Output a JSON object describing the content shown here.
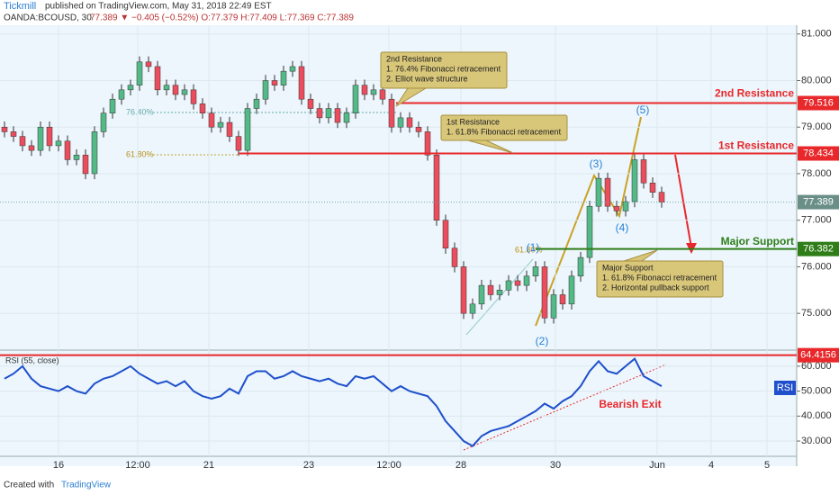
{
  "header": {
    "publisher": "Tickmill",
    "published": "published on TradingView.com, May 31, 2018 22:49 EST",
    "symbol": "OANDA:BCOUSD, 30",
    "quote": "77.389 ▼ −0.405 (−0.52%) O:77.379 H:77.409 L:77.369 C:77.389"
  },
  "time_axis": [
    "16",
    "12:00",
    "21",
    "23",
    "12:00",
    "28",
    "30",
    "Jun",
    "4",
    "5"
  ],
  "footer": {
    "created": "Created with",
    "brand": "TradingView"
  },
  "chart_data": [
    {
      "type": "candlestick",
      "up_color": "#53b987",
      "down_color": "#eb4d5c",
      "values": [
        78.9,
        78.8,
        78.6,
        78.5,
        79.0,
        78.6,
        78.7,
        78.3,
        78.4,
        78.0,
        78.9,
        79.3,
        79.6,
        79.8,
        79.9,
        80.4,
        80.3,
        79.8,
        79.9,
        79.7,
        79.8,
        79.5,
        79.3,
        79.0,
        79.1,
        78.8,
        78.5,
        79.4,
        79.6,
        80.0,
        79.9,
        80.2,
        80.3,
        79.6,
        79.4,
        79.2,
        79.4,
        79.1,
        79.3,
        79.9,
        79.7,
        79.8,
        79.6,
        79.0,
        79.2,
        79.0,
        78.9,
        78.4,
        77.0,
        76.4,
        76.0,
        75.0,
        75.2,
        75.6,
        75.4,
        75.5,
        75.7,
        75.6,
        75.8,
        76.0,
        74.9,
        75.4,
        75.2,
        75.8,
        76.2,
        77.3,
        77.9,
        77.3,
        77.2,
        77.4,
        78.3,
        77.8,
        77.6,
        77.389
      ],
      "ylim": [
        74.23,
        81.15
      ],
      "yticks": [
        {
          "value": 81,
          "label": "81.000"
        },
        {
          "value": 80,
          "label": "80.000"
        },
        {
          "value": 79,
          "label": "79.000"
        },
        {
          "value": 78,
          "label": "78.000"
        },
        {
          "value": 77,
          "label": "77.000"
        },
        {
          "value": 76,
          "label": "76.000"
        },
        {
          "value": 75,
          "label": "75.000"
        }
      ],
      "last_price": 77.389,
      "levels": [
        {
          "name": "2nd Resistance",
          "value": 79.516,
          "color": "#e8282b"
        },
        {
          "name": "1st Resistance",
          "value": 78.434,
          "color": "#e8282b"
        },
        {
          "name": "Major Support",
          "value": 76.382,
          "color": "#2e7d18"
        }
      ],
      "fib_labels": [
        "76.40%",
        "61.80%",
        "61.80%"
      ],
      "waves": [
        "(1)",
        "(2)",
        "(3)",
        "(4)",
        "(5)"
      ],
      "annotations": [
        [
          "2nd Resistance",
          "1. 76.4% Fibonacci retracement",
          "2. Elliot wave structure"
        ],
        [
          "1st Resistance",
          "1. 61.8% Fibonacci retracement"
        ],
        [
          "Major Support",
          "1. 61.8% Fibonacci retracement",
          "2. Horizontal pullback support"
        ]
      ]
    },
    {
      "type": "line",
      "name": "RSI (55, close)",
      "legend": "RSI",
      "color": "#1f4fcc",
      "values": [
        55,
        57,
        60,
        55,
        52,
        51,
        50,
        52,
        50,
        49,
        53,
        55,
        56,
        58,
        60,
        57,
        55,
        53,
        54,
        52,
        54,
        50,
        48,
        47,
        48,
        51,
        49,
        56,
        58,
        58,
        55,
        56,
        58,
        56,
        55,
        54,
        55,
        53,
        52,
        56,
        55,
        56,
        53,
        50,
        52,
        50,
        49,
        48,
        44,
        38,
        34,
        30,
        28,
        32,
        34,
        35,
        36,
        38,
        40,
        42,
        45,
        43,
        46,
        48,
        52,
        58,
        62,
        58,
        57,
        60,
        63,
        56,
        54,
        52
      ],
      "ylim": [
        24.6,
        66.1
      ],
      "yticks": [
        {
          "value": 60,
          "label": "60.000"
        },
        {
          "value": 50,
          "label": "50.000"
        },
        {
          "value": 40,
          "label": "40.000"
        },
        {
          "value": 30,
          "label": "30.000"
        }
      ],
      "level": {
        "value": 64.4156,
        "color": "#e8282b"
      },
      "annotation": "Bearish Exit"
    }
  ]
}
